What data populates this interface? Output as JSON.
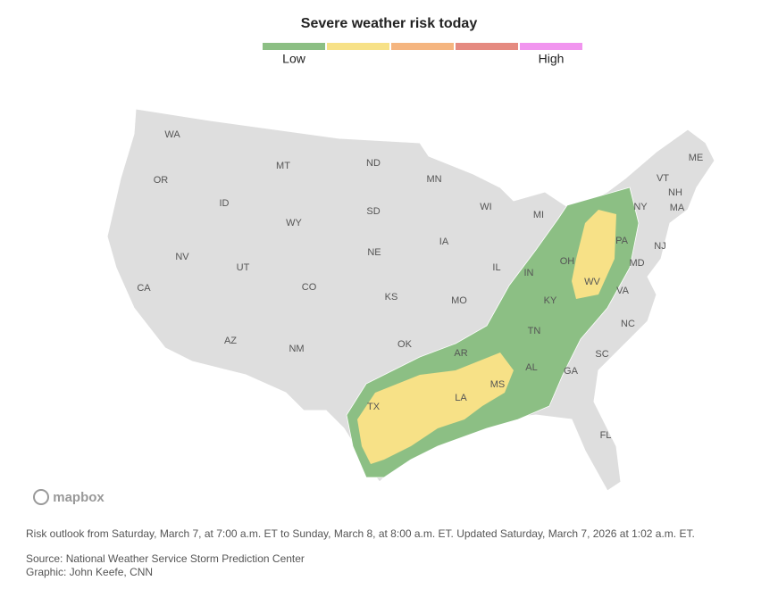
{
  "header": {
    "title": "Severe weather risk today",
    "legend": {
      "low": "Low",
      "high": "High"
    }
  },
  "map": {
    "attribution": "mapbox",
    "states": [
      "WA",
      "OR",
      "ID",
      "MT",
      "WY",
      "NV",
      "UT",
      "CA",
      "AZ",
      "CO",
      "NM",
      "ND",
      "SD",
      "NE",
      "KS",
      "OK",
      "TX",
      "MN",
      "IA",
      "MO",
      "AR",
      "LA",
      "WI",
      "IL",
      "MI",
      "IN",
      "OH",
      "KY",
      "TN",
      "MS",
      "AL",
      "GA",
      "FL",
      "SC",
      "NC",
      "VA",
      "WV",
      "PA",
      "NY",
      "MD",
      "NJ",
      "ME",
      "VT",
      "NH",
      "MA"
    ]
  },
  "footer": {
    "note": "Risk outlook from Saturday, March 7, at 7:00 a.m. ET to Sunday, March 8, at 8:00 a.m. ET. Updated Saturday, March 7, 2026 at 1:02 a.m. ET.",
    "source": "Source: National Weather Service Storm Prediction Center",
    "graphic": "Graphic: John Keefe, CNN"
  }
}
